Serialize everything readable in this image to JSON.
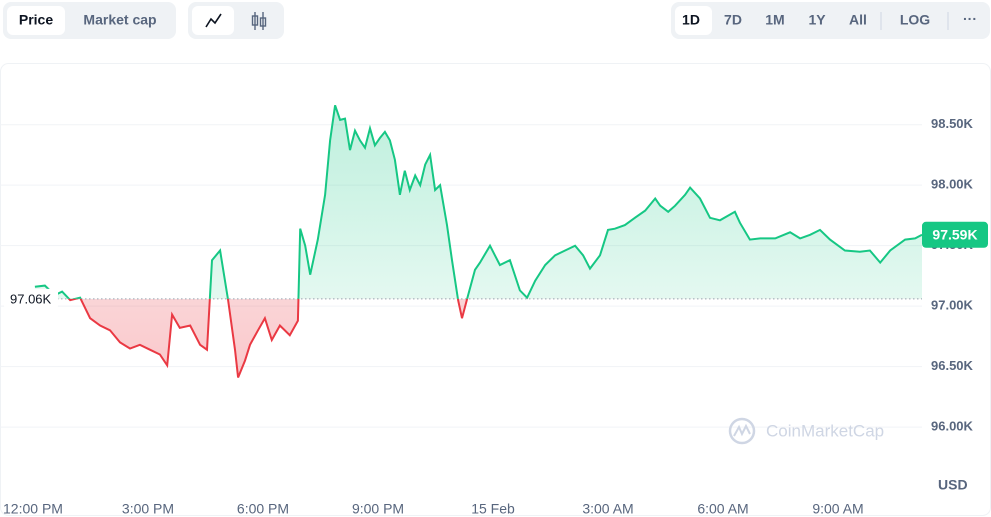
{
  "toolbar": {
    "metric_tabs": [
      "Price",
      "Market cap"
    ],
    "range_tabs": [
      "1D",
      "7D",
      "1M",
      "1Y",
      "All"
    ],
    "log": "LOG",
    "more": "···"
  },
  "chart_data": {
    "type": "line",
    "x": [
      0.05,
      0.31,
      0.57,
      0.76,
      0.97,
      1.23,
      1.49,
      1.75,
      2.01,
      2.27,
      2.53,
      2.79,
      3.05,
      3.31,
      3.5,
      3.63,
      3.83,
      4.1,
      4.36,
      4.54,
      4.67,
      4.88,
      5.09,
      5.27,
      5.35,
      5.53,
      5.66,
      5.87,
      6.05,
      6.23,
      6.44,
      6.7,
      6.91,
      6.97,
      7.1,
      7.23,
      7.43,
      7.62,
      7.75,
      7.88,
      8.01,
      8.14,
      8.27,
      8.4,
      8.53,
      8.66,
      8.79,
      8.92,
      9.05,
      9.18,
      9.31,
      9.44,
      9.57,
      9.7,
      9.83,
      9.97,
      10.1,
      10.23,
      10.36,
      10.49,
      10.62,
      10.8,
      10.93,
      11.09,
      11.19,
      11.35,
      11.53,
      11.66,
      11.92,
      12.05,
      12.18,
      12.44,
      12.7,
      12.89,
      13.1,
      13.36,
      13.62,
      13.88,
      14.14,
      14.35,
      14.53,
      14.79,
      15.0,
      15.18,
      15.44,
      15.7,
      15.97,
      16.23,
      16.36,
      16.57,
      16.75,
      17.01,
      17.14,
      17.4,
      17.66,
      17.92,
      18.31,
      18.44,
      18.7,
      18.97,
      19.36,
      19.75,
      20.01,
      20.27,
      20.53,
      20.79,
      21.18,
      21.57,
      21.83,
      22.1,
      22.36,
      22.75,
      23.01,
      23.19
    ],
    "values": [
      97160,
      97170,
      97090,
      97120,
      97050,
      97070,
      96900,
      96840,
      96800,
      96700,
      96650,
      96680,
      96640,
      96600,
      96510,
      96930,
      96820,
      96840,
      96680,
      96640,
      97380,
      97460,
      97050,
      96640,
      96410,
      96550,
      96680,
      96800,
      96900,
      96720,
      96840,
      96760,
      96880,
      97640,
      97500,
      97260,
      97550,
      97920,
      98370,
      98660,
      98540,
      98550,
      98290,
      98450,
      98370,
      98310,
      98470,
      98330,
      98390,
      98440,
      98370,
      98210,
      97920,
      98120,
      97960,
      98080,
      98000,
      98170,
      98250,
      97960,
      98000,
      97670,
      97380,
      97050,
      96900,
      97090,
      97300,
      97360,
      97500,
      97420,
      97340,
      97380,
      97130,
      97070,
      97210,
      97340,
      97420,
      97460,
      97500,
      97420,
      97310,
      97420,
      97630,
      97640,
      97670,
      97730,
      97790,
      97890,
      97830,
      97780,
      97830,
      97920,
      97980,
      97890,
      97730,
      97710,
      97780,
      97690,
      97550,
      97560,
      97560,
      97610,
      97560,
      97590,
      97630,
      97550,
      97460,
      97450,
      97460,
      97360,
      97460,
      97550,
      97560,
      97590
    ],
    "color": "#16c784",
    "color_below": "#ea3943",
    "baseline": {
      "value": 97060,
      "label": "97.06K"
    },
    "last_price": {
      "value": 97590,
      "label": "97.59K"
    },
    "xlim": [
      -0.73,
      23.19
    ],
    "xticks": [
      {
        "value": 0,
        "label": "12:00 PM"
      },
      {
        "value": 3,
        "label": "3:00 PM"
      },
      {
        "value": 6,
        "label": "6:00 PM"
      },
      {
        "value": 9,
        "label": "9:00 PM"
      },
      {
        "value": 12,
        "label": "15 Feb"
      },
      {
        "value": 15,
        "label": "3:00 AM"
      },
      {
        "value": 18,
        "label": "6:00 AM"
      },
      {
        "value": 21,
        "label": "9:00 AM"
      }
    ],
    "ylim": [
      95480,
      99010
    ],
    "yticks": [
      {
        "value": 96000,
        "label": "96.00K"
      },
      {
        "value": 96500,
        "label": "96.50K"
      },
      {
        "value": 97000,
        "label": "97.00K"
      },
      {
        "value": 97500,
        "label": "97.50K"
      },
      {
        "value": 98000,
        "label": "98.00K"
      },
      {
        "value": 98500,
        "label": "98.50K"
      }
    ],
    "grid": true,
    "y_unit": "USD",
    "watermark": "CoinMarketCap"
  }
}
